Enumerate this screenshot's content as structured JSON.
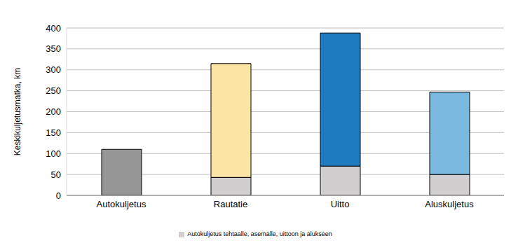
{
  "chart_data": {
    "type": "bar",
    "stacked": true,
    "y_label": "Keskikuljetusmatka, km",
    "categories": [
      "Autokuljetus",
      "Rautatie",
      "Uitto",
      "Aluskuljetus"
    ],
    "series": [
      {
        "name": "Autokuljetus tehtaalle, asemalle, uittoon ja alukseen",
        "color": "#d0cece",
        "values": [
          0,
          43,
          70,
          50
        ]
      },
      {
        "colors": [
          "#969696",
          "#fbe5a5",
          "#1f7bc0",
          "#7ab8e0"
        ],
        "values": [
          110,
          272,
          318,
          197
        ]
      }
    ],
    "ylim": [
      0,
      400
    ],
    "yticks": [
      0,
      50,
      100,
      150,
      200,
      250,
      300,
      350,
      400
    ],
    "grid": true,
    "legend": "bottom"
  }
}
